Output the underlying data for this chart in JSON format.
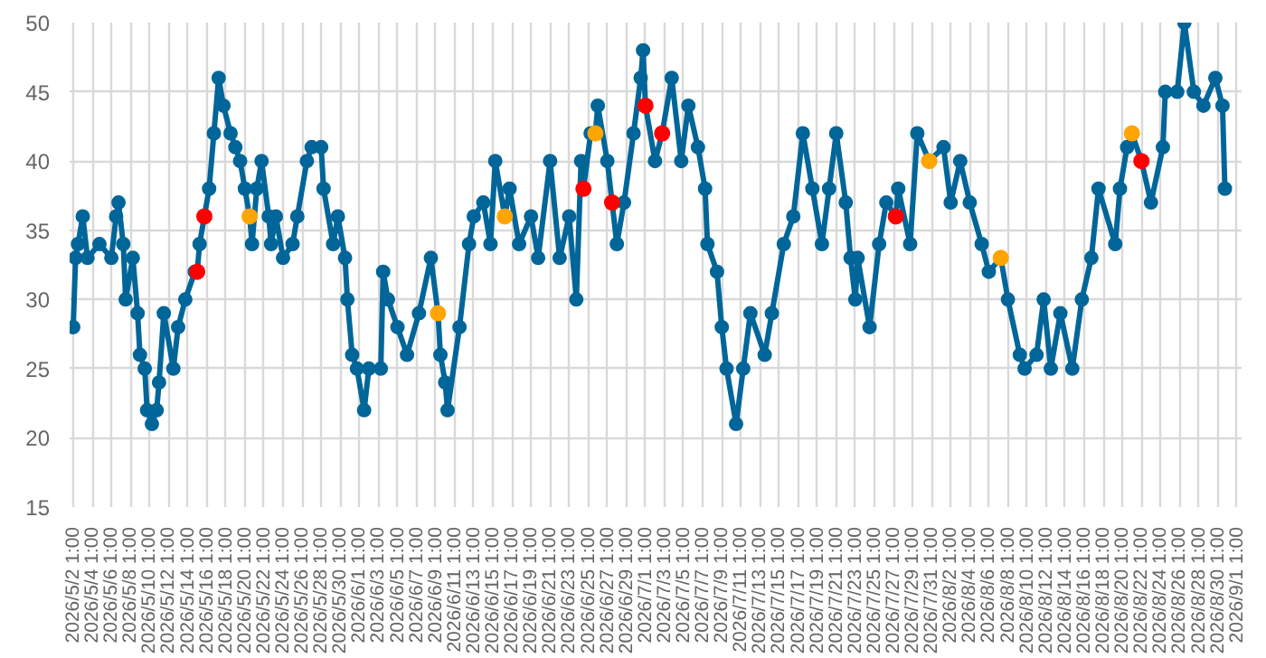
{
  "chart_data": {
    "type": "line",
    "marker": "circle",
    "grid": true,
    "xlim": [
      "2026-05-01T16:00",
      "2026-09-01T13:00"
    ],
    "ylim": [
      15,
      50
    ],
    "yticks": [
      15,
      20,
      25,
      30,
      35,
      40,
      45,
      50
    ],
    "xticks": [
      {
        "value": "2026-05-02T01:00",
        "label": "2026/5/2 1:00"
      },
      {
        "value": "2026-05-04T01:00",
        "label": "2026/5/4 1:00"
      },
      {
        "value": "2026-05-06T01:00",
        "label": "2026/5/6 1:00"
      },
      {
        "value": "2026-05-08T01:00",
        "label": "2026/5/8 1:00"
      },
      {
        "value": "2026-05-10T01:00",
        "label": "2026/5/10 1:00"
      },
      {
        "value": "2026-05-12T01:00",
        "label": "2026/5/12 1:00"
      },
      {
        "value": "2026-05-14T01:00",
        "label": "2026/5/14 1:00"
      },
      {
        "value": "2026-05-16T01:00",
        "label": "2026/5/16 1:00"
      },
      {
        "value": "2026-05-18T01:00",
        "label": "2026/5/18 1:00"
      },
      {
        "value": "2026-05-20T01:00",
        "label": "2026/5/20 1:00"
      },
      {
        "value": "2026-05-22T01:00",
        "label": "2026/5/22 1:00"
      },
      {
        "value": "2026-05-24T01:00",
        "label": "2026/5/24 1:00"
      },
      {
        "value": "2026-05-26T01:00",
        "label": "2026/5/26 1:00"
      },
      {
        "value": "2026-05-28T01:00",
        "label": "2026/5/28 1:00"
      },
      {
        "value": "2026-05-30T01:00",
        "label": "2026/5/30 1:00"
      },
      {
        "value": "2026-06-01T01:00",
        "label": "2026/6/1 1:00"
      },
      {
        "value": "2026-06-03T01:00",
        "label": "2026/6/3 1:00"
      },
      {
        "value": "2026-06-05T01:00",
        "label": "2026/6/5 1:00"
      },
      {
        "value": "2026-06-07T01:00",
        "label": "2026/6/7 1:00"
      },
      {
        "value": "2026-06-09T01:00",
        "label": "2026/6/9 1:00"
      },
      {
        "value": "2026-06-11T01:00",
        "label": "2026/6/11 1:00"
      },
      {
        "value": "2026-06-13T01:00",
        "label": "2026/6/13 1:00"
      },
      {
        "value": "2026-06-15T01:00",
        "label": "2026/6/15 1:00"
      },
      {
        "value": "2026-06-17T01:00",
        "label": "2026/6/17 1:00"
      },
      {
        "value": "2026-06-19T01:00",
        "label": "2026/6/19 1:00"
      },
      {
        "value": "2026-06-21T01:00",
        "label": "2026/6/21 1:00"
      },
      {
        "value": "2026-06-23T01:00",
        "label": "2026/6/23 1:00"
      },
      {
        "value": "2026-06-25T01:00",
        "label": "2026/6/25 1:00"
      },
      {
        "value": "2026-06-27T01:00",
        "label": "2026/6/27 1:00"
      },
      {
        "value": "2026-06-29T01:00",
        "label": "2026/6/29 1:00"
      },
      {
        "value": "2026-07-01T01:00",
        "label": "2026/7/1 1:00"
      },
      {
        "value": "2026-07-03T01:00",
        "label": "2026/7/3 1:00"
      },
      {
        "value": "2026-07-05T01:00",
        "label": "2026/7/5 1:00"
      },
      {
        "value": "2026-07-07T01:00",
        "label": "2026/7/7 1:00"
      },
      {
        "value": "2026-07-09T01:00",
        "label": "2026/7/9 1:00"
      },
      {
        "value": "2026-07-11T01:00",
        "label": "2026/7/11 1:00"
      },
      {
        "value": "2026-07-13T01:00",
        "label": "2026/7/13 1:00"
      },
      {
        "value": "2026-07-15T01:00",
        "label": "2026/7/15 1:00"
      },
      {
        "value": "2026-07-17T01:00",
        "label": "2026/7/17 1:00"
      },
      {
        "value": "2026-07-19T01:00",
        "label": "2026/7/19 1:00"
      },
      {
        "value": "2026-07-21T01:00",
        "label": "2026/7/21 1:00"
      },
      {
        "value": "2026-07-23T01:00",
        "label": "2026/7/23 1:00"
      },
      {
        "value": "2026-07-25T01:00",
        "label": "2026/7/25 1:00"
      },
      {
        "value": "2026-07-27T01:00",
        "label": "2026/7/27 1:00"
      },
      {
        "value": "2026-07-29T01:00",
        "label": "2026/7/29 1:00"
      },
      {
        "value": "2026-07-31T01:00",
        "label": "2026/7/31 1:00"
      },
      {
        "value": "2026-08-02T01:00",
        "label": "2026/8/2 1:00"
      },
      {
        "value": "2026-08-04T01:00",
        "label": "2026/8/4 1:00"
      },
      {
        "value": "2026-08-06T01:00",
        "label": "2026/8/6 1:00"
      },
      {
        "value": "2026-08-08T01:00",
        "label": "2026/8/8 1:00"
      },
      {
        "value": "2026-08-10T01:00",
        "label": "2026/8/10 1:00"
      },
      {
        "value": "2026-08-12T01:00",
        "label": "2026/8/12 1:00"
      },
      {
        "value": "2026-08-14T01:00",
        "label": "2026/8/14 1:00"
      },
      {
        "value": "2026-08-16T01:00",
        "label": "2026/8/16 1:00"
      },
      {
        "value": "2026-08-18T01:00",
        "label": "2026/8/18 1:00"
      },
      {
        "value": "2026-08-20T01:00",
        "label": "2026/8/20 1:00"
      },
      {
        "value": "2026-08-22T01:00",
        "label": "2026/8/22 1:00"
      },
      {
        "value": "2026-08-24T01:00",
        "label": "2026/8/24 1:00"
      },
      {
        "value": "2026-08-26T01:00",
        "label": "2026/8/26 1:00"
      },
      {
        "value": "2026-08-28T01:00",
        "label": "2026/8/28 1:00"
      },
      {
        "value": "2026-08-30T01:00",
        "label": "2026/8/30 1:00"
      },
      {
        "value": "2026-09-01T01:00",
        "label": "2026/9/1 1:00"
      }
    ],
    "series": [
      {
        "color": "#006699",
        "x": [
          "2026-05-02T01:00",
          "2026-05-02T07:00",
          "2026-05-02T13:00",
          "2026-05-03T01:00",
          "2026-05-03T13:00",
          "2026-05-04T19:00",
          "2026-05-06T01:00",
          "2026-05-06T13:00",
          "2026-05-06T19:00",
          "2026-05-07T07:00",
          "2026-05-07T13:00",
          "2026-05-08T07:00",
          "2026-05-08T19:00",
          "2026-05-09T01:00",
          "2026-05-09T13:00",
          "2026-05-09T19:00",
          "2026-05-10T07:00",
          "2026-05-10T19:00",
          "2026-05-11T01:00",
          "2026-05-11T13:00",
          "2026-05-12T13:00",
          "2026-05-13T01:00",
          "2026-05-13T19:00",
          "2026-05-14T19:00",
          "2026-05-15T01:00",
          "2026-05-15T07:00",
          "2026-05-15T19:00",
          "2026-05-16T07:00",
          "2026-05-16T19:00",
          "2026-05-17T07:00",
          "2026-05-17T19:00",
          "2026-05-18T13:00",
          "2026-05-19T01:00",
          "2026-05-19T13:00",
          "2026-05-20T01:00",
          "2026-05-20T13:00",
          "2026-05-20T19:00",
          "2026-05-21T07:00",
          "2026-05-21T19:00",
          "2026-05-22T13:00",
          "2026-05-22T19:00",
          "2026-05-23T07:00",
          "2026-05-24T01:00",
          "2026-05-25T01:00",
          "2026-05-25T13:00",
          "2026-05-26T13:00",
          "2026-05-27T01:00",
          "2026-05-28T01:00",
          "2026-05-28T07:00",
          "2026-05-29T07:00",
          "2026-05-29T19:00",
          "2026-05-30T13:00",
          "2026-05-30T19:00",
          "2026-05-31T07:00",
          "2026-05-31T19:00",
          "2026-06-01T13:00",
          "2026-06-02T01:00",
          "2026-06-03T07:00",
          "2026-06-03T13:00",
          "2026-06-04T01:00",
          "2026-06-05T01:00",
          "2026-06-06T01:00",
          "2026-06-07T07:00",
          "2026-06-08T13:00",
          "2026-06-09T07:00",
          "2026-06-09T13:00",
          "2026-06-10T01:00",
          "2026-06-10T07:00",
          "2026-06-11T13:00",
          "2026-06-12T13:00",
          "2026-06-13T01:00",
          "2026-06-14T01:00",
          "2026-06-14T19:00",
          "2026-06-15T07:00",
          "2026-06-16T07:00",
          "2026-06-16T19:00",
          "2026-06-17T19:00",
          "2026-06-19T01:00",
          "2026-06-19T19:00",
          "2026-06-21T01:00",
          "2026-06-22T01:00",
          "2026-06-23T01:00",
          "2026-06-23T19:00",
          "2026-06-24T07:00",
          "2026-06-24T13:00",
          "2026-06-25T07:00",
          "2026-06-25T19:00",
          "2026-06-26T01:00",
          "2026-06-27T01:00",
          "2026-06-27T13:00",
          "2026-06-28T01:00",
          "2026-06-28T19:00",
          "2026-06-29T19:00",
          "2026-06-30T13:00",
          "2026-06-30T19:00",
          "2026-07-01T01:00",
          "2026-07-02T01:00",
          "2026-07-02T19:00",
          "2026-07-03T19:00",
          "2026-07-04T19:00",
          "2026-07-05T13:00",
          "2026-07-06T13:00",
          "2026-07-07T07:00",
          "2026-07-07T13:00",
          "2026-07-08T13:00",
          "2026-07-09T01:00",
          "2026-07-09T13:00",
          "2026-07-10T13:00",
          "2026-07-11T07:00",
          "2026-07-12T01:00",
          "2026-07-13T13:00",
          "2026-07-14T07:00",
          "2026-07-15T13:00",
          "2026-07-16T13:00",
          "2026-07-17T13:00",
          "2026-07-18T13:00",
          "2026-07-19T13:00",
          "2026-07-20T07:00",
          "2026-07-21T01:00",
          "2026-07-22T01:00",
          "2026-07-22T13:00",
          "2026-07-23T01:00",
          "2026-07-23T07:00",
          "2026-07-24T13:00",
          "2026-07-25T13:00",
          "2026-07-26T07:00",
          "2026-07-27T07:00",
          "2026-07-27T13:00",
          "2026-07-28T19:00",
          "2026-07-29T13:00",
          "2026-07-30T19:00",
          "2026-08-01T07:00",
          "2026-08-02T01:00",
          "2026-08-03T01:00",
          "2026-08-04T01:00",
          "2026-08-05T07:00",
          "2026-08-06T01:00",
          "2026-08-07T07:00",
          "2026-08-08T01:00",
          "2026-08-09T07:00",
          "2026-08-09T19:00",
          "2026-08-11T01:00",
          "2026-08-11T19:00",
          "2026-08-12T13:00",
          "2026-08-13T13:00",
          "2026-08-14T19:00",
          "2026-08-15T19:00",
          "2026-08-16T19:00",
          "2026-08-17T13:00",
          "2026-08-19T07:00",
          "2026-08-19T19:00",
          "2026-08-20T13:00",
          "2026-08-21T01:00",
          "2026-08-22T01:00",
          "2026-08-23T01:00",
          "2026-08-24T07:00",
          "2026-08-24T13:00",
          "2026-08-25T19:00",
          "2026-08-26T13:00",
          "2026-08-27T13:00",
          "2026-08-28T13:00",
          "2026-08-29T19:00",
          "2026-08-30T13:00",
          "2026-08-30T19:00"
        ],
        "values": [
          28,
          33,
          34,
          36,
          33,
          34,
          33,
          36,
          37,
          34,
          30,
          33,
          29,
          26,
          25,
          22,
          21,
          22,
          24,
          29,
          25,
          28,
          30,
          32,
          32,
          34,
          36,
          38,
          42,
          46,
          44,
          42,
          41,
          40,
          38,
          36,
          34,
          38,
          40,
          36,
          34,
          36,
          33,
          34,
          36,
          40,
          41,
          41,
          38,
          34,
          36,
          33,
          30,
          26,
          25,
          22,
          25,
          25,
          32,
          30,
          28,
          26,
          29,
          33,
          29,
          26,
          24,
          22,
          28,
          34,
          36,
          37,
          34,
          40,
          36,
          38,
          34,
          36,
          33,
          40,
          33,
          36,
          30,
          40,
          38,
          42,
          42,
          44,
          40,
          37,
          34,
          37,
          42,
          46,
          48,
          44,
          40,
          42,
          46,
          40,
          44,
          41,
          38,
          34,
          32,
          28,
          25,
          21,
          25,
          29,
          26,
          29,
          34,
          36,
          42,
          38,
          34,
          38,
          42,
          37,
          33,
          30,
          33,
          28,
          34,
          37,
          36,
          38,
          34,
          42,
          40,
          41,
          37,
          40,
          37,
          34,
          32,
          33,
          30,
          26,
          25,
          26,
          30,
          25,
          29,
          25,
          30,
          33,
          38,
          34,
          38,
          41,
          42,
          40,
          37,
          41,
          45,
          45,
          50,
          45,
          44,
          46,
          44,
          38
        ]
      },
      {
        "type": "scatter",
        "color": "#ff0000",
        "x": [
          "2026-05-15T01:00",
          "2026-05-15T19:00",
          "2026-06-24T13:00",
          "2026-06-27T13:00",
          "2026-07-01T01:00",
          "2026-07-02T19:00",
          "2026-07-27T07:00",
          "2026-08-22T01:00"
        ],
        "values": [
          32,
          36,
          38,
          37,
          44,
          42,
          36,
          40
        ]
      },
      {
        "type": "scatter",
        "color": "#ffa500",
        "x": [
          "2026-05-20T13:00",
          "2026-06-09T07:00",
          "2026-06-16T07:00",
          "2026-06-25T19:00",
          "2026-07-30T19:00",
          "2026-08-07T07:00",
          "2026-08-21T01:00"
        ],
        "values": [
          36,
          29,
          36,
          42,
          40,
          33,
          42
        ]
      }
    ]
  }
}
